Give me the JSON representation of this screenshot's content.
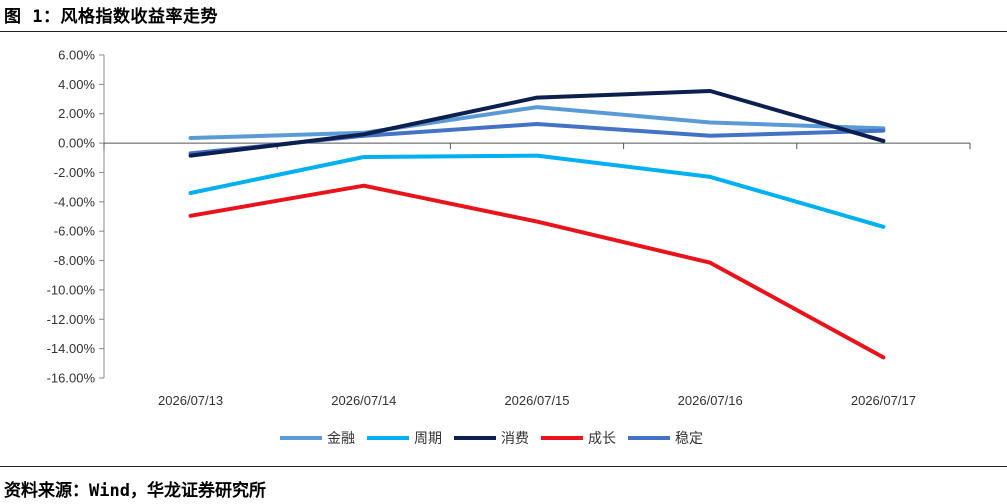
{
  "figure": {
    "title": "图 1：风格指数收益率走势",
    "source": "资料来源：Wind，华龙证券研究所"
  },
  "colors": {
    "金融": "#5B9BD5",
    "周期": "#00B0F0",
    "消费": "#0D1F4E",
    "成长": "#E8131B",
    "稳定": "#4472C4"
  },
  "chart_data": {
    "type": "line",
    "title": "",
    "xlabel": "",
    "ylabel": "",
    "categories": [
      "2026/07/13",
      "2026/07/14",
      "2026/07/15",
      "2026/07/16",
      "2026/07/17"
    ],
    "ylim": [
      -16,
      6
    ],
    "yticks": [
      6,
      4,
      2,
      0,
      -2,
      -4,
      -6,
      -8,
      -10,
      -12,
      -14,
      -16
    ],
    "ytick_labels": [
      "6.00%",
      "4.00%",
      "2.00%",
      "0.00%",
      "-2.00%",
      "-4.00%",
      "-6.00%",
      "-8.00%",
      "-10.00%",
      "-12.00%",
      "-14.00%",
      "-16.00%"
    ],
    "grid": false,
    "legend_position": "bottom",
    "series": [
      {
        "name": "金融",
        "values": [
          0.35,
          0.7,
          2.45,
          1.4,
          1.0
        ]
      },
      {
        "name": "周期",
        "values": [
          -3.4,
          -0.95,
          -0.85,
          -2.3,
          -5.7
        ]
      },
      {
        "name": "消费",
        "values": [
          -0.85,
          0.6,
          3.1,
          3.55,
          0.15
        ]
      },
      {
        "name": "成长",
        "values": [
          -4.95,
          -2.9,
          -5.35,
          -8.15,
          -14.6
        ]
      },
      {
        "name": "稳定",
        "values": [
          -0.7,
          0.5,
          1.3,
          0.5,
          0.85
        ]
      }
    ]
  }
}
